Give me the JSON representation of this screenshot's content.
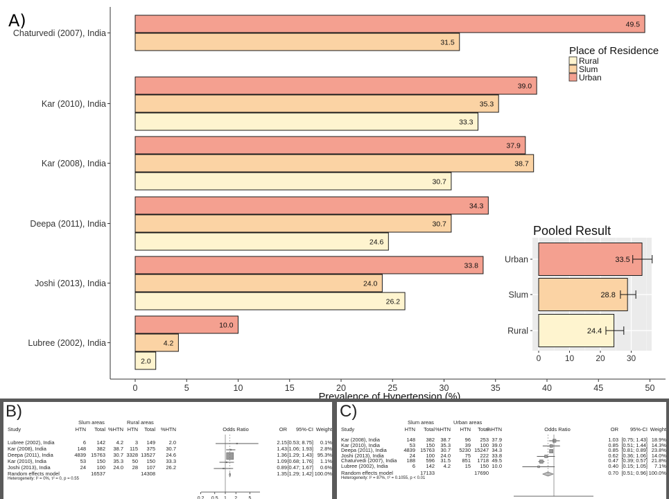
{
  "chart_data": [
    {
      "type": "bar",
      "panel_label": "A)",
      "orientation": "horizontal",
      "categories": [
        "Chaturvedi (2007), India",
        "Kar (2010), India",
        "Kar (2008), India",
        "Deepa (2011), India",
        "Joshi (2013), India",
        "Lubree (2002), India"
      ],
      "series": [
        {
          "name": "Urban",
          "color": "#f4a090",
          "values": [
            49.5,
            39.0,
            37.9,
            34.3,
            33.8,
            10.0
          ],
          "labels": [
            "49.5",
            "39.0",
            "37.9",
            "34.3",
            "33.8",
            "10.0"
          ]
        },
        {
          "name": "Slum",
          "color": "#fbd3a4",
          "values": [
            31.5,
            35.3,
            38.7,
            30.7,
            24.0,
            4.2
          ],
          "labels": [
            "31.5",
            "35.3",
            "38.7",
            "30.7",
            "24.0",
            "4.2"
          ]
        },
        {
          "name": "Rural",
          "color": "#fef4cf",
          "values": [
            null,
            33.3,
            30.7,
            24.6,
            26.2,
            2.0
          ],
          "labels": [
            "",
            "33.3",
            "30.7",
            "24.6",
            "26.2",
            "2.0"
          ]
        }
      ],
      "xlabel": "Prevalence of Hypertension (%)",
      "xticks": [
        "0",
        "5",
        "10",
        "15",
        "20",
        "25",
        "30",
        "35",
        "40",
        "45",
        "50"
      ],
      "xlim": [
        0,
        50
      ],
      "legend": {
        "title": "Place of Residence",
        "items": [
          "Rural",
          "Slum",
          "Urban"
        ],
        "position": "top-right"
      }
    },
    {
      "type": "bar",
      "title": "Pooled Result",
      "orientation": "horizontal",
      "categories": [
        "Urban",
        "Slum",
        "Rural"
      ],
      "values": [
        33.5,
        28.8,
        24.4
      ],
      "labels": [
        "33.5",
        "28.8",
        "24.4"
      ],
      "error_low": [
        30.5,
        26.5,
        21.8
      ],
      "error_high": [
        36.8,
        31.5,
        27.6
      ],
      "colors": [
        "#f4a090",
        "#fbd3a4",
        "#fef4cf"
      ],
      "xticks": [
        "0",
        "10",
        "20",
        "30"
      ],
      "xlim": [
        0,
        36.8
      ],
      "grid": true
    },
    {
      "type": "table",
      "panel_label": "B)",
      "group_headers": [
        "Slum areas",
        "Rural areas"
      ],
      "columns": [
        "Study",
        "HTN",
        "Total",
        "%HTN",
        "HTN",
        "Total",
        "%HTN",
        "Odds Ratio",
        "OR",
        "95%-CI",
        "Weight"
      ],
      "rows": [
        {
          "study": "Lubree (2002), India",
          "htn1": "6",
          "total1": "142",
          "pct1": "4.2",
          "htn2": "3",
          "total2": "149",
          "pct2": "2.0",
          "or": "2.15",
          "ci": "[0.53; 8.75]",
          "weight": "0.1%",
          "or_value": 2.15,
          "ci_low": 0.53,
          "ci_high": 8.75
        },
        {
          "study": "Kar (2008), India",
          "htn1": "148",
          "total1": "382",
          "pct1": "38.7",
          "htn2": "115",
          "total2": "375",
          "pct2": "30.7",
          "or": "1.43",
          "ci": "[1.06; 1.93]",
          "weight": "2.8%",
          "or_value": 1.43,
          "ci_low": 1.06,
          "ci_high": 1.93
        },
        {
          "study": "Deepa (2011), India",
          "htn1": "4839",
          "total1": "15763",
          "pct1": "30.7",
          "htn2": "3328",
          "total2": "13527",
          "pct2": "24.6",
          "or": "1.36",
          "ci": "[1.29; 1.43]",
          "weight": "95.3%",
          "or_value": 1.36,
          "ci_low": 1.29,
          "ci_high": 1.43
        },
        {
          "study": "Kar (2010), India",
          "htn1": "53",
          "total1": "150",
          "pct1": "35.3",
          "htn2": "50",
          "total2": "150",
          "pct2": "33.3",
          "or": "1.09",
          "ci": "[0.68; 1.76]",
          "weight": "1.1%",
          "or_value": 1.09,
          "ci_low": 0.68,
          "ci_high": 1.76
        },
        {
          "study": "Joshi (2013), India",
          "htn1": "24",
          "total1": "100",
          "pct1": "24.0",
          "htn2": "28",
          "total2": "107",
          "pct2": "26.2",
          "or": "0.89",
          "ci": "[0.47; 1.67]",
          "weight": "0.6%",
          "or_value": 0.89,
          "ci_low": 0.47,
          "ci_high": 1.67
        }
      ],
      "summary": {
        "label": "Random effects model",
        "total1": "16537",
        "total2": "14308",
        "or": "1.35",
        "ci": "[1.29; 1.42]",
        "weight": "100.0%",
        "or_value": 1.35,
        "ci_low": 1.29,
        "ci_high": 1.42
      },
      "heterogeneity": "Heterogeneity: I² = 0%, τ² = 0, p = 0.55",
      "axis_ticks": [
        "0.2",
        "0.5",
        "1",
        "2",
        "5"
      ],
      "axis_values": [
        0.2,
        0.5,
        1,
        2,
        5
      ],
      "log_scale": true
    },
    {
      "type": "table",
      "panel_label": "C)",
      "group_headers": [
        "Slum areas",
        "Urban areas"
      ],
      "columns": [
        "Study",
        "HTN",
        "Total",
        "%HTN",
        "HTN",
        "Total",
        "%HTN",
        "Odds Ratio",
        "OR",
        "95%-CI",
        "Weight"
      ],
      "rows": [
        {
          "study": "Kar (2008), India",
          "htn1": "148",
          "total1": "382",
          "pct1": "38.7",
          "htn2": "96",
          "total2": "253",
          "pct2": "37.9",
          "or": "1.03",
          "ci": "[0.75; 1.43]",
          "weight": "18.9%",
          "or_value": 1.03,
          "ci_low": 0.75,
          "ci_high": 1.43
        },
        {
          "study": "Kar (2010), India",
          "htn1": "53",
          "total1": "150",
          "pct1": "35.3",
          "htn2": "39",
          "total2": "100",
          "pct2": "39.0",
          "or": "0.85",
          "ci": "[0.51; 1.44]",
          "weight": "14.3%",
          "or_value": 0.85,
          "ci_low": 0.51,
          "ci_high": 1.44
        },
        {
          "study": "Deepa (2011), India",
          "htn1": "4839",
          "total1": "15763",
          "pct1": "30.7",
          "htn2": "5230",
          "total2": "15247",
          "pct2": "34.3",
          "or": "0.85",
          "ci": "[0.81; 0.89]",
          "weight": "23.8%",
          "or_value": 0.85,
          "ci_low": 0.81,
          "ci_high": 0.89
        },
        {
          "study": "Joshi (2013), India",
          "htn1": "24",
          "total1": "100",
          "pct1": "24.0",
          "htn2": "75",
          "total2": "222",
          "pct2": "33.8",
          "or": "0.62",
          "ci": "[0.36; 1.06]",
          "weight": "14.0%",
          "or_value": 0.62,
          "ci_low": 0.36,
          "ci_high": 1.06
        },
        {
          "study": "Chaturvedi (2007), India",
          "htn1": "188",
          "total1": "596",
          "pct1": "31.5",
          "htn2": "851",
          "total2": "1718",
          "pct2": "49.5",
          "or": "0.47",
          "ci": "[0.39; 0.57]",
          "weight": "21.8%",
          "or_value": 0.47,
          "ci_low": 0.39,
          "ci_high": 0.57
        },
        {
          "study": "Lubree (2002), India",
          "htn1": "6",
          "total1": "142",
          "pct1": "4.2",
          "htn2": "15",
          "total2": "150",
          "pct2": "10.0",
          "or": "0.40",
          "ci": "[0.15; 1.05]",
          "weight": "7.1%",
          "or_value": 0.4,
          "ci_low": 0.15,
          "ci_high": 1.05
        }
      ],
      "summary": {
        "label": "Random effects model",
        "total1": "17133",
        "total2": "17690",
        "or": "0.70",
        "ci": "[0.51; 0.96]",
        "weight": "100.0%",
        "or_value": 0.7,
        "ci_low": 0.51,
        "ci_high": 0.96
      },
      "heterogeneity": "Heterogeneity: I² = 87%, τ² = 0.1055, p < 0.01",
      "log_scale": true
    }
  ]
}
